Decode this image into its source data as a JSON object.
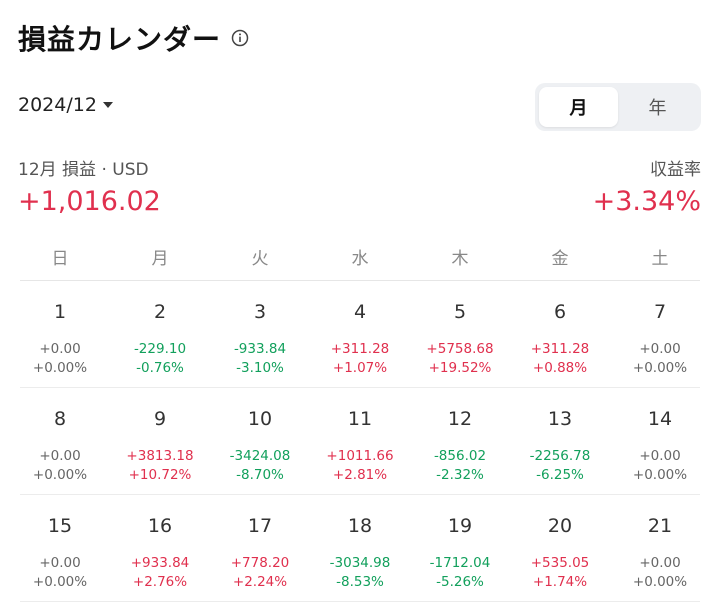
{
  "header": {
    "title": "損益カレンダー",
    "info_icon": "info-circle-icon"
  },
  "month_select": {
    "value": "2024/12"
  },
  "view_toggle": {
    "options": [
      "月",
      "年"
    ],
    "selected": "月"
  },
  "summary": {
    "pnl_label": "12月 損益 · USD",
    "pnl_value": "+1,016.02",
    "rate_label": "収益率",
    "rate_value": "+3.34%"
  },
  "colors": {
    "positive": "#e0304e",
    "negative": "#12a05c",
    "neutral": "#666666"
  },
  "weekdays": [
    "日",
    "月",
    "火",
    "水",
    "木",
    "金",
    "土"
  ],
  "weeks": [
    [
      {
        "day": "1",
        "amount": "+0.00",
        "percent": "+0.00%",
        "trend": "zero"
      },
      {
        "day": "2",
        "amount": "-229.10",
        "percent": "-0.76%",
        "trend": "neg"
      },
      {
        "day": "3",
        "amount": "-933.84",
        "percent": "-3.10%",
        "trend": "neg"
      },
      {
        "day": "4",
        "amount": "+311.28",
        "percent": "+1.07%",
        "trend": "pos"
      },
      {
        "day": "5",
        "amount": "+5758.68",
        "percent": "+19.52%",
        "trend": "pos"
      },
      {
        "day": "6",
        "amount": "+311.28",
        "percent": "+0.88%",
        "trend": "pos"
      },
      {
        "day": "7",
        "amount": "+0.00",
        "percent": "+0.00%",
        "trend": "zero"
      }
    ],
    [
      {
        "day": "8",
        "amount": "+0.00",
        "percent": "+0.00%",
        "trend": "zero"
      },
      {
        "day": "9",
        "amount": "+3813.18",
        "percent": "+10.72%",
        "trend": "pos"
      },
      {
        "day": "10",
        "amount": "-3424.08",
        "percent": "-8.70%",
        "trend": "neg"
      },
      {
        "day": "11",
        "amount": "+1011.66",
        "percent": "+2.81%",
        "trend": "pos"
      },
      {
        "day": "12",
        "amount": "-856.02",
        "percent": "-2.32%",
        "trend": "neg"
      },
      {
        "day": "13",
        "amount": "-2256.78",
        "percent": "-6.25%",
        "trend": "neg"
      },
      {
        "day": "14",
        "amount": "+0.00",
        "percent": "+0.00%",
        "trend": "zero"
      }
    ],
    [
      {
        "day": "15",
        "amount": "+0.00",
        "percent": "+0.00%",
        "trend": "zero"
      },
      {
        "day": "16",
        "amount": "+933.84",
        "percent": "+2.76%",
        "trend": "pos"
      },
      {
        "day": "17",
        "amount": "+778.20",
        "percent": "+2.24%",
        "trend": "pos"
      },
      {
        "day": "18",
        "amount": "-3034.98",
        "percent": "-8.53%",
        "trend": "neg"
      },
      {
        "day": "19",
        "amount": "-1712.04",
        "percent": "-5.26%",
        "trend": "neg"
      },
      {
        "day": "20",
        "amount": "+535.05",
        "percent": "+1.74%",
        "trend": "pos"
      },
      {
        "day": "21",
        "amount": "+0.00",
        "percent": "+0.00%",
        "trend": "zero"
      }
    ]
  ]
}
